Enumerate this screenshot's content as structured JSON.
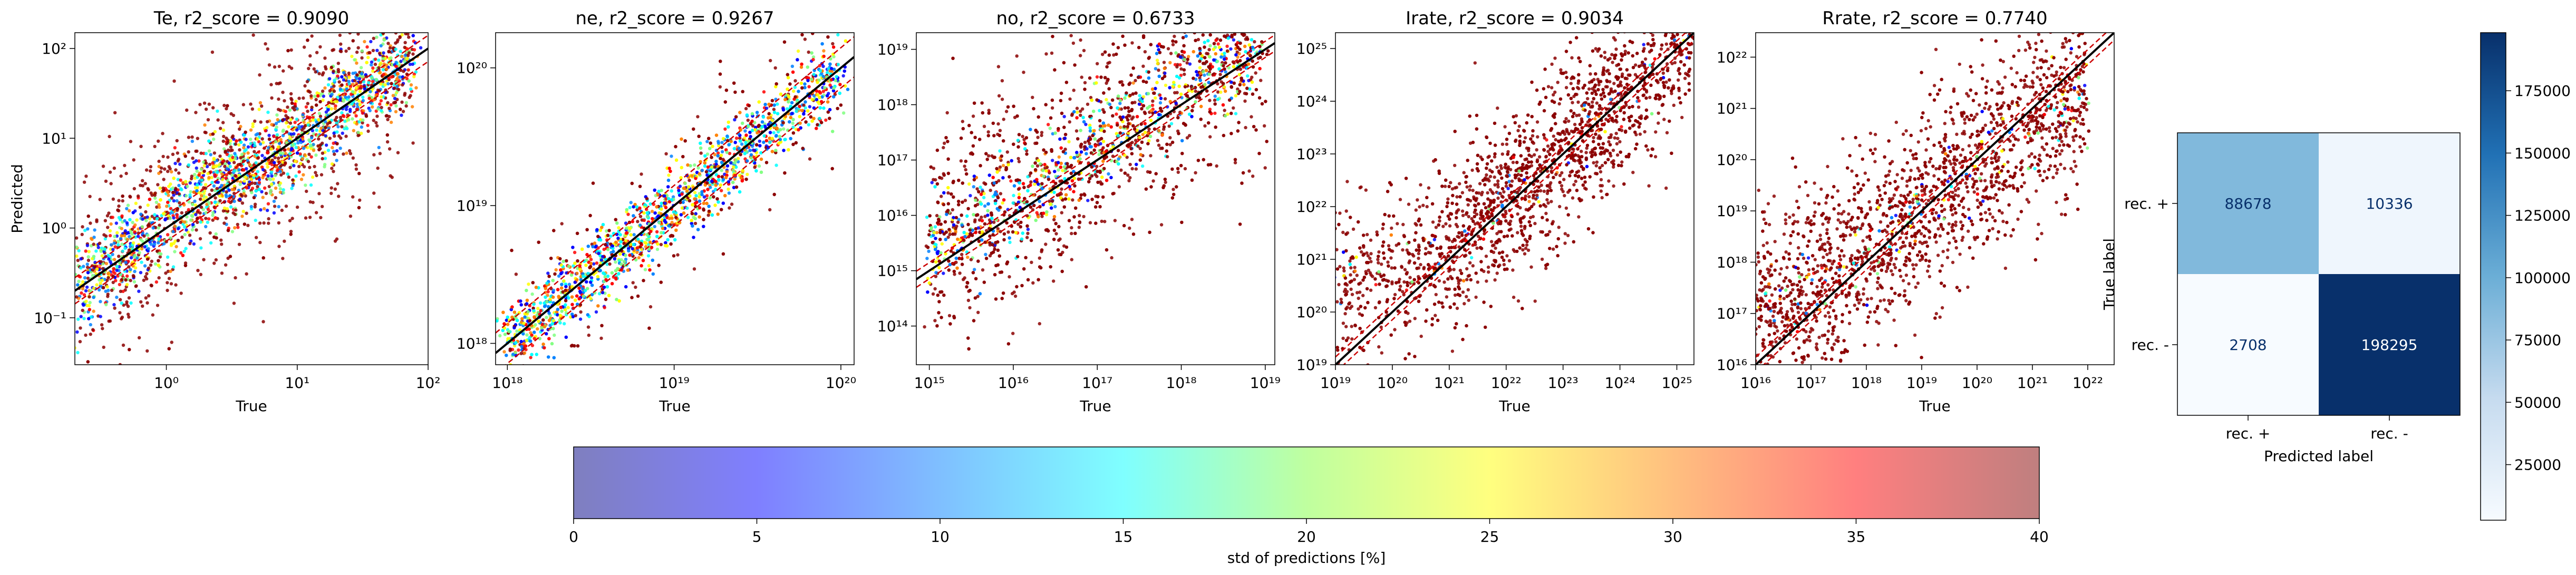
{
  "figure": {
    "colorbar_label": "std of predictions [%]",
    "colorbar_ticks": [
      0,
      5,
      10,
      15,
      20,
      25,
      30,
      35,
      40
    ],
    "colorbar_colors": [
      "#7f7fbf",
      "#7f7fff",
      "#7fbfff",
      "#7fffff",
      "#bfff9f",
      "#ffff7f",
      "#ffbf7f",
      "#ff7f7f",
      "#bf7f7f"
    ],
    "cm_colorbar_ticks": [
      "25000",
      "50000",
      "75000",
      "100000",
      "125000",
      "150000",
      "175000"
    ]
  },
  "chart_data": [
    {
      "type": "scatter",
      "title": "Te, r2_score = 0.9090",
      "xlabel": "True",
      "ylabel": "Predicted",
      "log": true,
      "xlim": [
        0.2,
        100
      ],
      "ylim": [
        0.03,
        150
      ],
      "xticks": [
        "10⁰",
        "10¹",
        "10²"
      ],
      "yticks": [
        "10⁻¹",
        "10⁰",
        "10¹",
        "10²"
      ],
      "x_tick_values": [
        1,
        10,
        100
      ],
      "y_tick_values": [
        0.1,
        1,
        10,
        100
      ],
      "trend": [
        [
          0.22,
          0.22
        ],
        [
          0.6,
          0.7
        ],
        [
          2,
          3
        ],
        [
          5,
          4.5
        ],
        [
          12,
          12
        ],
        [
          30,
          35
        ],
        [
          75,
          80
        ]
      ],
      "spread": 0.35,
      "red_fraction": 0.35
    },
    {
      "type": "scatter",
      "title": "ne, r2_score = 0.9267",
      "xlabel": "True",
      "ylabel": "",
      "log": true,
      "xlim": [
        8.5e+17,
        1.2e+20
      ],
      "ylim": [
        7e+17,
        1.8e+20
      ],
      "xticks": [
        "10¹⁸",
        "10¹⁹",
        "10²⁰"
      ],
      "yticks": [
        "10¹⁸",
        "10¹⁹",
        "10²⁰"
      ],
      "x_tick_values": [
        1e+18,
        1e+19,
        1e+20
      ],
      "y_tick_values": [
        1e+18,
        1e+19,
        1e+20
      ],
      "trend": [
        [
          1e+18,
          1e+18
        ],
        [
          1e+19,
          1e+19
        ],
        [
          1e+20,
          1e+20
        ]
      ],
      "spread": 0.18,
      "red_fraction": 0.15
    },
    {
      "type": "scatter",
      "title": "no, r2_score = 0.6733",
      "xlabel": "True",
      "ylabel": "",
      "log": true,
      "xlim": [
        700000000000000.0,
        1.3e+19
      ],
      "ylim": [
        20000000000000.0,
        2e+19
      ],
      "xticks": [
        "10¹⁵",
        "10¹⁶",
        "10¹⁷",
        "10¹⁸",
        "10¹⁹"
      ],
      "yticks": [
        "10¹⁴",
        "10¹⁵",
        "10¹⁶",
        "10¹⁷",
        "10¹⁸",
        "10¹⁹"
      ],
      "x_tick_values": [
        1000000000000000.0,
        1e+16,
        1e+17,
        1e+18,
        1e+19
      ],
      "y_tick_values": [
        100000000000000.0,
        1000000000000000.0,
        1e+16,
        1e+17,
        1e+18,
        1e+19
      ],
      "trend": [
        [
          1000000000000000.0,
          3000000000000000.0
        ],
        [
          1e+16,
          2e+16
        ],
        [
          1e+17,
          2e+17
        ],
        [
          1e+18,
          2e+18
        ],
        [
          1e+19,
          1e+19
        ]
      ],
      "spread": 0.6,
      "red_fraction": 0.6
    },
    {
      "type": "scatter",
      "title": "Irate, r2_score = 0.9034",
      "xlabel": "True",
      "ylabel": "",
      "log": true,
      "xlim": [
        1e+19,
        2e+25
      ],
      "ylim": [
        1e+19,
        2e+25
      ],
      "xticks": [
        "10¹⁹",
        "10²⁰",
        "10²¹",
        "10²²",
        "10²³",
        "10²⁴",
        "10²⁵"
      ],
      "yticks": [
        "10¹⁹",
        "10²⁰",
        "10²¹",
        "10²²",
        "10²³",
        "10²⁴",
        "10²⁵"
      ],
      "x_tick_values": [
        1e+19,
        1e+20,
        1e+21,
        1e+22,
        1e+23,
        1e+24,
        1e+25
      ],
      "y_tick_values": [
        1e+19,
        1e+20,
        1e+21,
        1e+22,
        1e+23,
        1e+24,
        1e+25
      ],
      "trend": [
        [
          1e+19,
          3e+20
        ],
        [
          1e+21,
          2e+21
        ],
        [
          1e+22,
          1.5e+22
        ],
        [
          1e+23,
          1e+23
        ],
        [
          1e+24,
          1e+24
        ],
        [
          2e+25,
          2e+25
        ]
      ],
      "spread": 0.5,
      "red_fraction": 0.95
    },
    {
      "type": "scatter",
      "title": "Rrate, r2_score = 0.7740",
      "xlabel": "True",
      "ylabel": "",
      "log": true,
      "xlim": [
        1e+16,
        3e+22
      ],
      "ylim": [
        1e+16,
        3e+22
      ],
      "xticks": [
        "10¹⁶",
        "10¹⁷",
        "10¹⁸",
        "10¹⁹",
        "10²⁰",
        "10²¹",
        "10²²"
      ],
      "yticks": [
        "10¹⁶",
        "10¹⁷",
        "10¹⁸",
        "10¹⁹",
        "10²⁰",
        "10²¹",
        "10²²"
      ],
      "x_tick_values": [
        1e+16,
        1e+17,
        1e+18,
        1e+19,
        1e+20,
        1e+21,
        1e+22
      ],
      "y_tick_values": [
        1e+16,
        1e+17,
        1e+18,
        1e+19,
        1e+20,
        1e+21,
        1e+22
      ],
      "trend": [
        [
          1e+16,
          8e+16
        ],
        [
          1e+17,
          3e+17
        ],
        [
          1e+18,
          1.5e+18
        ],
        [
          1e+19,
          1e+19
        ],
        [
          1e+20,
          8e+19
        ],
        [
          1e+21,
          5e+20
        ],
        [
          1e+22,
          2e+21
        ]
      ],
      "spread": 0.6,
      "red_fraction": 0.9
    },
    {
      "type": "heatmap",
      "title": "",
      "xlabel": "Predicted label",
      "ylabel": "True label",
      "row_labels": [
        "rec. +",
        "rec. -"
      ],
      "col_labels": [
        "rec. +",
        "rec. -"
      ],
      "values": [
        [
          88678,
          10336
        ],
        [
          2708,
          198295
        ]
      ],
      "vmin": 2708,
      "vmax": 198295
    }
  ]
}
